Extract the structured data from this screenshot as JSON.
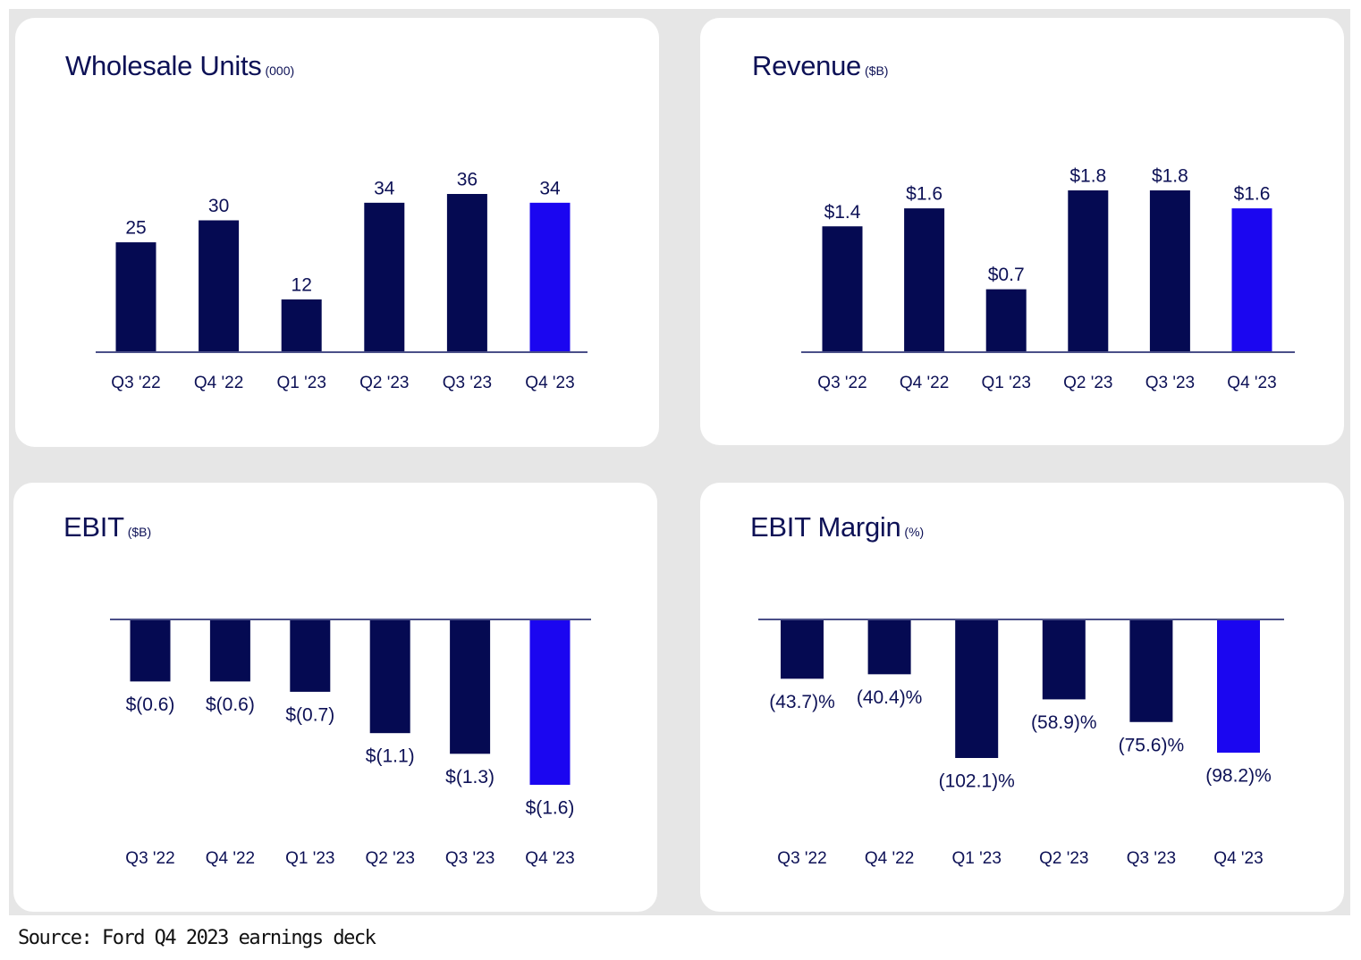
{
  "colors": {
    "bar": "#050a52",
    "highlight": "#1b06f0",
    "axis": "#4a4f88",
    "text": "#0d1156"
  },
  "source": "Source: Ford Q4 2023 earnings deck",
  "chart_data": [
    {
      "type": "bar",
      "title": "Wholesale Units",
      "unit": "(000)",
      "categories": [
        "Q3 '22",
        "Q4 '22",
        "Q1 '23",
        "Q2 '23",
        "Q3 '23",
        "Q4 '23"
      ],
      "values": [
        25,
        30,
        12,
        34,
        36,
        34
      ],
      "labels": [
        "25",
        "30",
        "12",
        "34",
        "36",
        "34"
      ],
      "highlight_index": 5,
      "ylim": [
        0,
        36
      ],
      "grid": false
    },
    {
      "type": "bar",
      "title": "Revenue",
      "unit": "($B)",
      "categories": [
        "Q3 '22",
        "Q4 '22",
        "Q1 '23",
        "Q2 '23",
        "Q3 '23",
        "Q4 '23"
      ],
      "values": [
        1.4,
        1.6,
        0.7,
        1.8,
        1.8,
        1.6
      ],
      "labels": [
        "$1.4",
        "$1.6",
        "$0.7",
        "$1.8",
        "$1.8",
        "$1.6"
      ],
      "highlight_index": 5,
      "ylim": [
        0,
        1.8
      ],
      "grid": false
    },
    {
      "type": "bar",
      "title": "EBIT",
      "unit": "($B)",
      "categories": [
        "Q3 '22",
        "Q4 '22",
        "Q1 '23",
        "Q2 '23",
        "Q3 '23",
        "Q4 '23"
      ],
      "values": [
        -0.6,
        -0.6,
        -0.7,
        -1.1,
        -1.3,
        -1.6
      ],
      "labels": [
        "$(0.6)",
        "$(0.6)",
        "$(0.7)",
        "$(1.1)",
        "$(1.3)",
        "$(1.6)"
      ],
      "highlight_index": 5,
      "ylim": [
        -1.6,
        0
      ],
      "grid": false
    },
    {
      "type": "bar",
      "title": "EBIT Margin",
      "unit": "(%)",
      "categories": [
        "Q3 '22",
        "Q4 '22",
        "Q1 '23",
        "Q2 '23",
        "Q3 '23",
        "Q4 '23"
      ],
      "values": [
        -43.7,
        -40.4,
        -102.1,
        -58.9,
        -75.6,
        -98.2
      ],
      "labels": [
        "(43.7)%",
        "(40.4)%",
        "(102.1)%",
        "(58.9)%",
        "(75.6)%",
        "(98.2)%"
      ],
      "highlight_index": 5,
      "ylim": [
        -102.1,
        0
      ],
      "grid": false
    }
  ]
}
